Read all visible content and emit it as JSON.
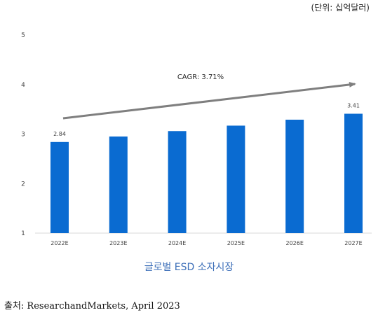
{
  "unit_note": "(단위: 십억달러)",
  "source": "출처: ResearchandMarkets, April 2023",
  "colors": {
    "bar": "#0a6bd1",
    "trend": "#7f7f7f",
    "axis": "#d9d9d9",
    "tick_text": "#404040",
    "title": "#3d6fb8"
  },
  "chart_data": {
    "type": "bar",
    "title": "글로벌 ESD 소자시장",
    "categories": [
      "2022E",
      "2023E",
      "2024E",
      "2025E",
      "2026E",
      "2027E"
    ],
    "values": [
      2.84,
      2.95,
      3.06,
      3.17,
      3.29,
      3.41
    ],
    "data_labels": [
      "2.84",
      "",
      "",
      "",
      "",
      "3.41"
    ],
    "yticks": [
      "1",
      "2",
      "3",
      "4",
      "5"
    ],
    "ylim": [
      1,
      5
    ],
    "grid": false,
    "annotation": "CAGR: 3.71%",
    "xlabel": "",
    "ylabel": ""
  }
}
